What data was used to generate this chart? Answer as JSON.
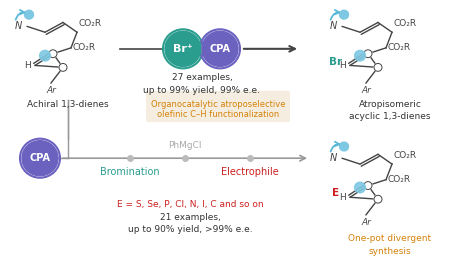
{
  "bg_color": "#ffffff",
  "text_achiral": "Achiral 1,3-dienes",
  "text_atrop": "Atropisomeric\nacyclic 1,3-dienes",
  "text_onepot": "One-pot divergent\nsynthesis",
  "text_bromination": "Bromination",
  "text_electrophile": "Electrophile",
  "text_phmgcl": "PhMgCl",
  "text_27ex": "27 examples,\nup to 99% yield, 99% e.e.",
  "text_21ex": "21 examples,\nup to 90% yield, >99% e.e.",
  "text_E_list": "E = S, Se, P, Cl, N, I, C and so on",
  "text_organocat_line1": "Organocatalytic atroposelective",
  "text_organocat_line2": "olefinic C–H functionalization",
  "color_teal": "#2a9d8f",
  "color_blue_cpa": "#6b62c0",
  "color_orange": "#d4820a",
  "color_red": "#cc2020",
  "color_gray": "#999999",
  "color_bond": "#444444",
  "color_cyan_dot": "#7ec8e3",
  "color_cyan_arrow": "#5ab8d8",
  "color_highlight_bg": "#f5ede0",
  "color_br": "#2a9d8f",
  "color_e": "#cc2020"
}
